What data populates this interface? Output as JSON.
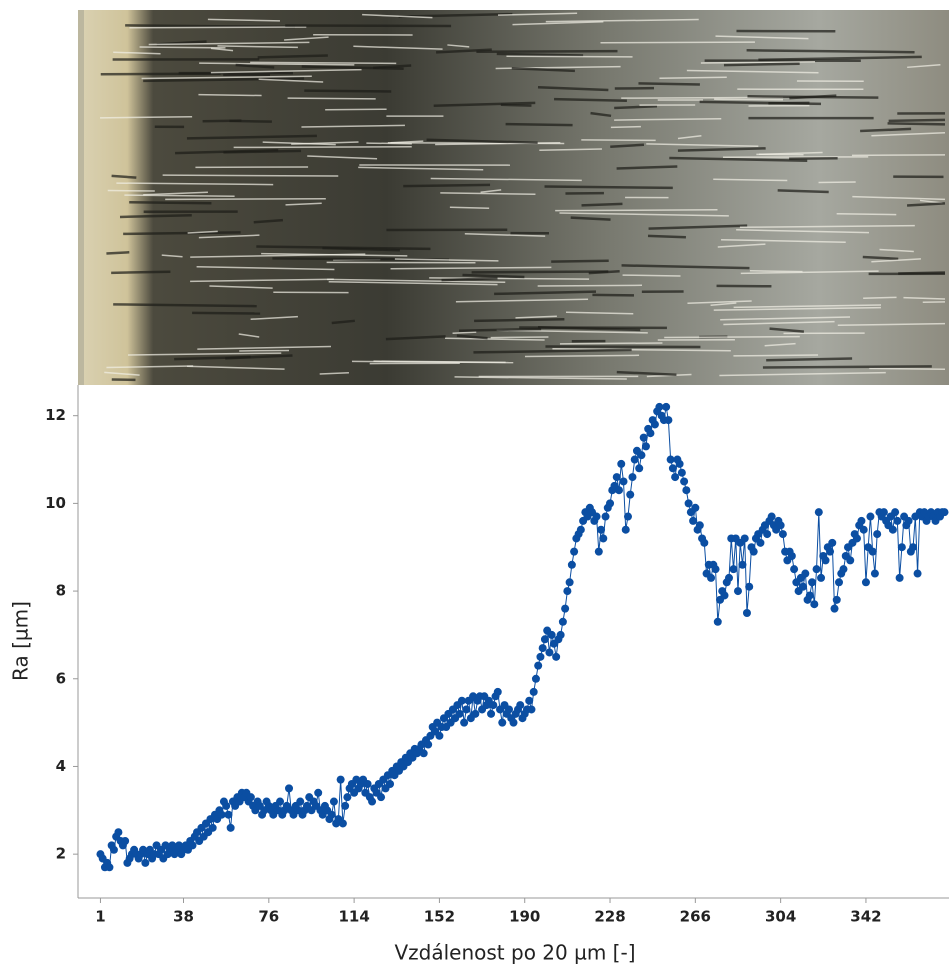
{
  "chart_data": {
    "type": "line",
    "x_label": "Vzdálenost po 20 µm [-]",
    "y_label": "Ra [µm]",
    "color": "#0b4ea2",
    "markers": true,
    "xlim": [
      -9,
      379
    ],
    "ylim": [
      1,
      12.7
    ],
    "xticks": [
      1,
      38,
      76,
      114,
      152,
      190,
      228,
      266,
      304,
      342
    ],
    "yticks": [
      2,
      4,
      6,
      8,
      10,
      12
    ],
    "x": [
      1,
      2,
      3,
      4,
      5,
      6,
      7,
      8,
      9,
      10,
      11,
      12,
      13,
      14,
      15,
      16,
      17,
      18,
      19,
      20,
      21,
      22,
      23,
      24,
      25,
      26,
      27,
      28,
      29,
      30,
      31,
      32,
      33,
      34,
      35,
      36,
      37,
      38,
      39,
      40,
      41,
      42,
      43,
      44,
      45,
      46,
      47,
      48,
      49,
      50,
      51,
      52,
      53,
      54,
      55,
      56,
      57,
      58,
      59,
      60,
      61,
      62,
      63,
      64,
      65,
      66,
      67,
      68,
      69,
      70,
      71,
      72,
      73,
      74,
      75,
      76,
      77,
      78,
      79,
      80,
      81,
      82,
      83,
      84,
      85,
      86,
      87,
      88,
      89,
      90,
      91,
      92,
      93,
      94,
      95,
      96,
      97,
      98,
      99,
      100,
      101,
      102,
      103,
      104,
      105,
      106,
      107,
      108,
      109,
      110,
      111,
      112,
      113,
      114,
      115,
      116,
      117,
      118,
      119,
      120,
      121,
      122,
      123,
      124,
      125,
      126,
      127,
      128,
      129,
      130,
      131,
      132,
      133,
      134,
      135,
      136,
      137,
      138,
      139,
      140,
      141,
      142,
      143,
      144,
      145,
      146,
      147,
      148,
      149,
      150,
      151,
      152,
      153,
      154,
      155,
      156,
      157,
      158,
      159,
      160,
      161,
      162,
      163,
      164,
      165,
      166,
      167,
      168,
      169,
      170,
      171,
      172,
      173,
      174,
      175,
      176,
      177,
      178,
      179,
      180,
      181,
      182,
      183,
      184,
      185,
      186,
      187,
      188,
      189,
      190,
      191,
      192,
      193,
      194,
      195,
      196,
      197,
      198,
      199,
      200,
      201,
      202,
      203,
      204,
      205,
      206,
      207,
      208,
      209,
      210,
      211,
      212,
      213,
      214,
      215,
      216,
      217,
      218,
      219,
      220,
      221,
      222,
      223,
      224,
      225,
      226,
      227,
      228,
      229,
      230,
      231,
      232,
      233,
      234,
      235,
      236,
      237,
      238,
      239,
      240,
      241,
      242,
      243,
      244,
      245,
      246,
      247,
      248,
      249,
      250,
      251,
      252,
      253,
      254,
      255,
      256,
      257,
      258,
      259,
      260,
      261,
      262,
      263,
      264,
      265,
      266,
      267,
      268,
      269,
      270,
      271,
      272,
      273,
      274,
      275,
      276,
      277,
      278,
      279,
      280,
      281,
      282,
      283,
      284,
      285,
      286,
      287,
      288,
      289,
      290,
      291,
      292,
      293,
      294,
      295,
      296,
      297,
      298,
      299,
      300,
      301,
      302,
      303,
      304,
      305,
      306,
      307,
      308,
      309,
      310,
      311,
      312,
      313,
      314,
      315,
      316,
      317,
      318,
      319,
      320,
      321,
      322,
      323,
      324,
      325,
      326,
      327,
      328,
      329,
      330,
      331,
      332,
      333,
      334,
      335,
      336,
      337,
      338,
      339,
      340,
      341,
      342,
      343,
      344,
      345,
      346,
      347,
      348,
      349,
      350,
      351,
      352,
      353,
      354,
      355,
      356,
      357,
      358,
      359,
      360,
      361,
      362,
      363,
      364,
      365,
      366,
      367,
      368,
      369,
      370,
      371,
      372,
      373,
      374,
      375,
      376,
      377
    ],
    "values": [
      2.0,
      1.9,
      1.7,
      1.8,
      1.7,
      2.2,
      2.1,
      2.4,
      2.5,
      2.3,
      2.2,
      2.3,
      1.8,
      1.9,
      2.0,
      2.1,
      2.0,
      1.9,
      2.0,
      2.1,
      1.8,
      2.0,
      2.1,
      1.9,
      2.0,
      2.2,
      2.0,
      2.1,
      1.9,
      2.2,
      2.0,
      2.1,
      2.2,
      2.0,
      2.1,
      2.2,
      2.0,
      2.1,
      2.2,
      2.1,
      2.3,
      2.2,
      2.4,
      2.5,
      2.3,
      2.6,
      2.4,
      2.7,
      2.5,
      2.8,
      2.6,
      2.9,
      2.8,
      3.0,
      2.9,
      3.2,
      3.1,
      2.9,
      2.6,
      3.2,
      3.1,
      3.3,
      3.2,
      3.4,
      3.3,
      3.4,
      3.2,
      3.3,
      3.1,
      3.0,
      3.2,
      3.1,
      2.9,
      3.0,
      3.2,
      3.1,
      3.0,
      2.9,
      3.1,
      3.0,
      3.2,
      2.9,
      3.0,
      3.1,
      3.5,
      3.0,
      2.9,
      3.1,
      3.0,
      3.2,
      2.9,
      3.0,
      3.1,
      3.3,
      3.0,
      3.2,
      3.1,
      3.4,
      3.0,
      2.9,
      3.1,
      3.0,
      2.8,
      2.9,
      3.2,
      2.7,
      2.8,
      3.7,
      2.7,
      3.1,
      3.3,
      3.5,
      3.6,
      3.4,
      3.7,
      3.5,
      3.6,
      3.7,
      3.4,
      3.6,
      3.3,
      3.2,
      3.5,
      3.4,
      3.6,
      3.3,
      3.7,
      3.5,
      3.8,
      3.6,
      3.9,
      3.8,
      4.0,
      3.9,
      4.1,
      4.0,
      4.2,
      4.1,
      4.3,
      4.2,
      4.4,
      4.3,
      4.4,
      4.5,
      4.3,
      4.6,
      4.5,
      4.7,
      4.9,
      4.8,
      5.0,
      4.7,
      4.9,
      5.1,
      4.9,
      5.2,
      5.0,
      5.3,
      5.1,
      5.4,
      5.2,
      5.5,
      5.0,
      5.3,
      5.5,
      5.1,
      5.6,
      5.2,
      5.5,
      5.6,
      5.3,
      5.6,
      5.4,
      5.5,
      5.2,
      5.4,
      5.6,
      5.7,
      5.3,
      5.0,
      5.4,
      5.2,
      5.3,
      5.1,
      5.0,
      5.2,
      5.3,
      5.4,
      5.1,
      5.2,
      5.3,
      5.5,
      5.3,
      5.7,
      6.0,
      6.3,
      6.5,
      6.7,
      6.9,
      7.1,
      6.6,
      7.0,
      6.8,
      6.5,
      6.9,
      7.0,
      7.3,
      7.6,
      8.0,
      8.2,
      8.6,
      8.9,
      9.2,
      9.3,
      9.4,
      9.6,
      9.8,
      9.7,
      9.9,
      9.8,
      9.6,
      9.7,
      8.9,
      9.4,
      9.2,
      9.7,
      9.9,
      10.0,
      10.3,
      10.4,
      10.6,
      10.3,
      10.9,
      10.5,
      9.4,
      9.7,
      10.2,
      10.6,
      11.0,
      11.2,
      10.8,
      11.1,
      11.5,
      11.3,
      11.7,
      11.6,
      11.9,
      11.8,
      12.1,
      12.2,
      12.0,
      11.9,
      12.2,
      11.9,
      11.0,
      10.8,
      10.6,
      11.0,
      10.9,
      10.7,
      10.5,
      10.3,
      10.0,
      9.8,
      9.6,
      9.9,
      9.4,
      9.5,
      9.2,
      9.1,
      8.4,
      8.6,
      8.3,
      8.6,
      8.5,
      7.3,
      7.8,
      8.0,
      7.9,
      8.2,
      8.3,
      9.2,
      8.5,
      9.2,
      8.0,
      9.1,
      8.6,
      9.2,
      7.5,
      8.1,
      9.0,
      8.9,
      9.2,
      9.3,
      9.1,
      9.4,
      9.5,
      9.3,
      9.6,
      9.7,
      9.5,
      9.4,
      9.6,
      9.5,
      9.3,
      8.9,
      8.7,
      8.9,
      8.8,
      8.5,
      8.2,
      8.0,
      8.3,
      8.1,
      8.4,
      7.8,
      7.9,
      8.2,
      7.7,
      8.5,
      9.8,
      8.3,
      8.8,
      8.7,
      9.0,
      8.9,
      9.1,
      7.6,
      7.8,
      8.2,
      8.4,
      8.5,
      8.8,
      9.0,
      8.7,
      9.1,
      9.3,
      9.2,
      9.5,
      9.6,
      9.4,
      8.2,
      9.0,
      9.7,
      8.9,
      8.4,
      9.3,
      9.8,
      9.7,
      9.8,
      9.6,
      9.5,
      9.7,
      9.4,
      9.8,
      9.6,
      8.3,
      9.0,
      9.7,
      9.5,
      9.6,
      8.9,
      9.0,
      9.7,
      8.4,
      9.8,
      9.7,
      9.8,
      9.6,
      9.7,
      9.8,
      9.7,
      9.6,
      9.8,
      9.7,
      9.8,
      9.8
    ]
  }
}
